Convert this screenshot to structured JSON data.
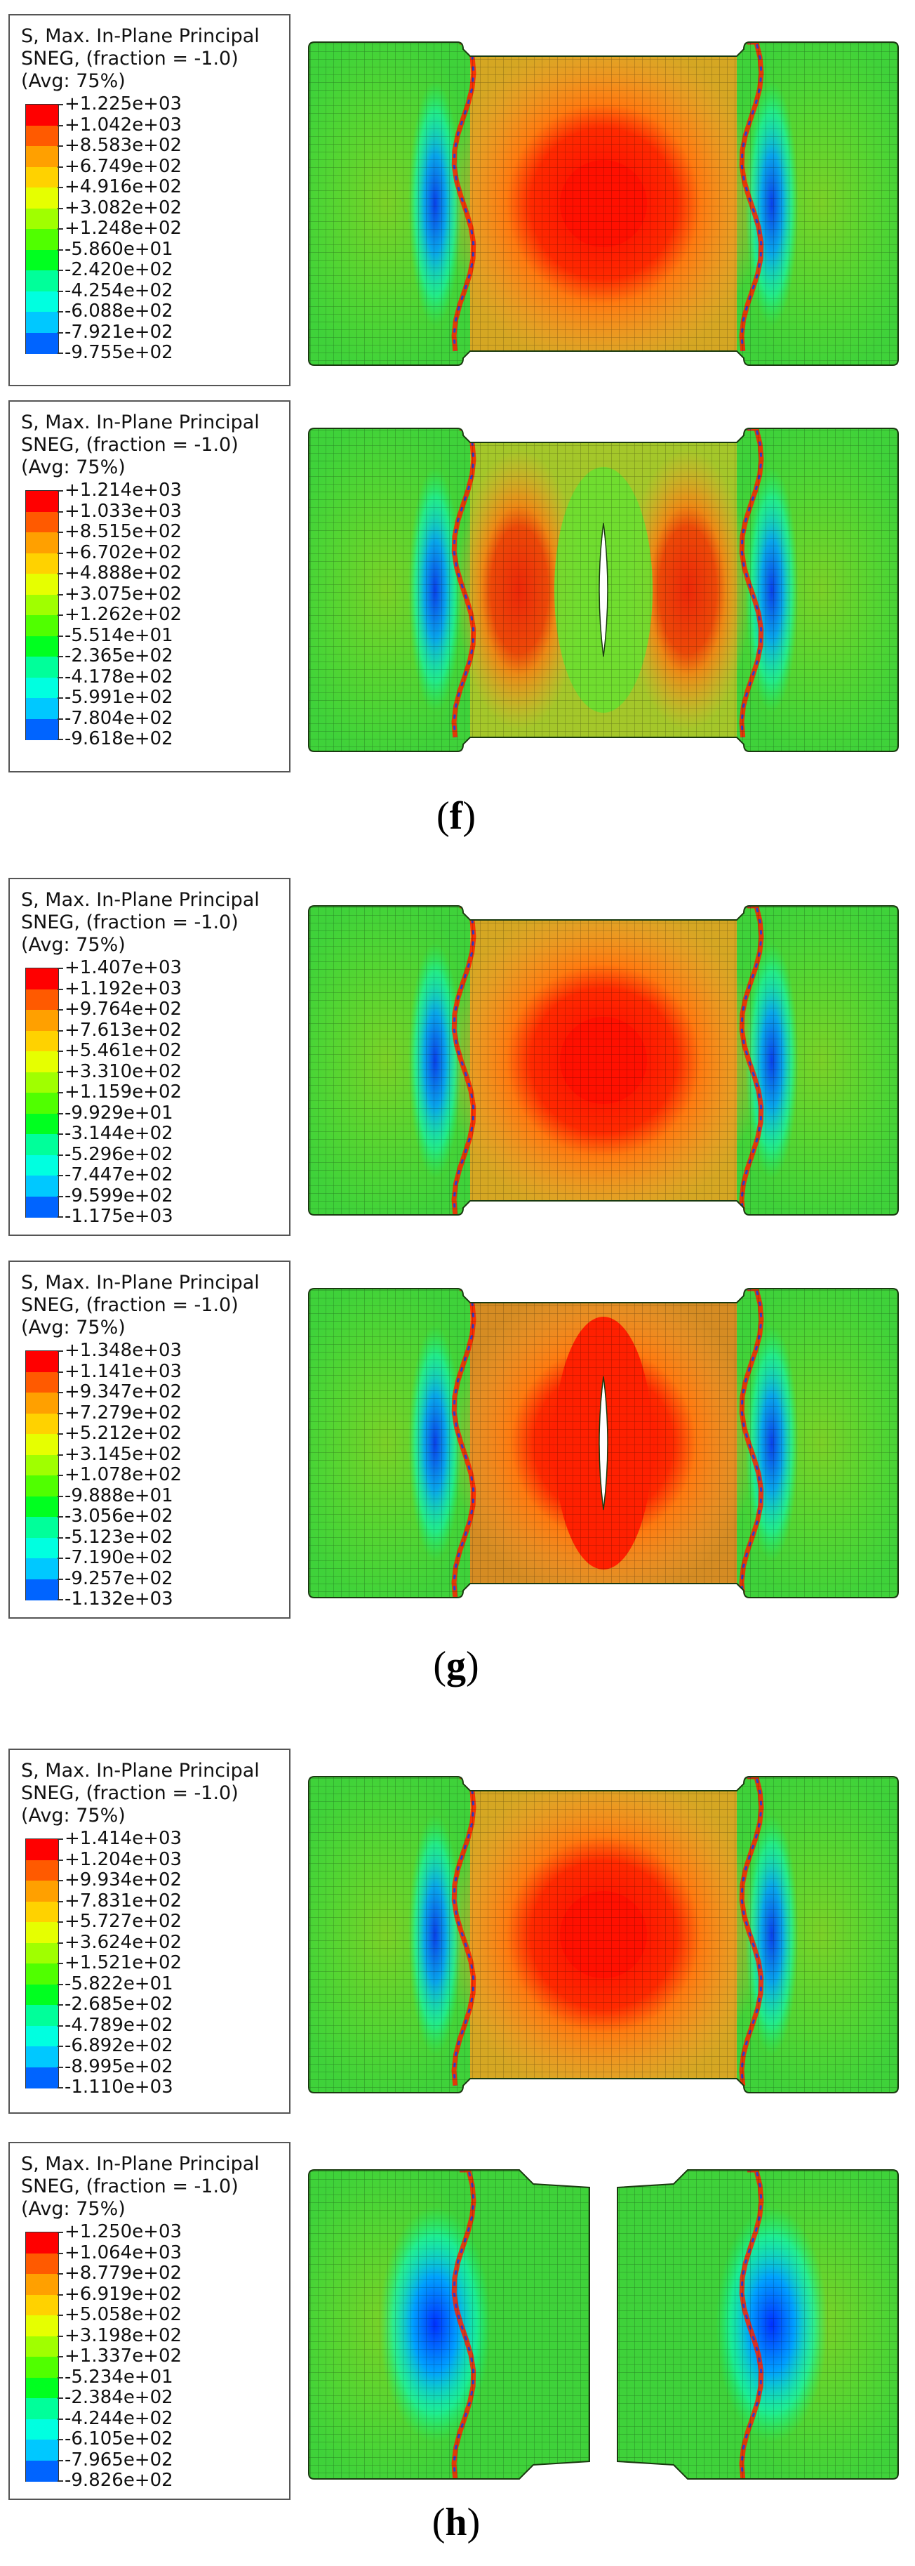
{
  "colors": [
    "#ff0000",
    "#ff5a00",
    "#ffa000",
    "#ffd200",
    "#e6ff00",
    "#a0ff00",
    "#50ff00",
    "#00ff20",
    "#00ff9a",
    "#00ffe0",
    "#00c8ff",
    "#0064ff",
    "#0000ff"
  ],
  "panels": [
    {
      "legend": {
        "title": [
          "S, Max. In-Plane Principal",
          "SNEG, (fraction = -1.0)",
          "(Avg: 75%)"
        ],
        "values": [
          "+1.225e+03",
          "+1.042e+03",
          "+8.583e+02",
          "+6.749e+02",
          "+4.916e+02",
          "+3.082e+02",
          "+1.248e+02",
          "-5.860e+01",
          "-2.420e+02",
          "-4.254e+02",
          "-6.088e+02",
          "-7.921e+02",
          "-9.755e+02"
        ]
      },
      "pattern": "center-hot",
      "split": "none"
    },
    {
      "legend": {
        "title": [
          "S, Max. In-Plane Principal",
          "SNEG, (fraction = -1.0)",
          "(Avg: 75%)"
        ],
        "values": [
          "+1.214e+03",
          "+1.033e+03",
          "+8.515e+02",
          "+6.702e+02",
          "+4.888e+02",
          "+3.075e+02",
          "+1.262e+02",
          "-5.514e+01",
          "-2.365e+02",
          "-4.178e+02",
          "-5.991e+02",
          "-7.804e+02",
          "-9.618e+02"
        ]
      },
      "pattern": "crack-mild",
      "split": "crack"
    },
    {
      "legend": {
        "title": [
          "S, Max. In-Plane Principal",
          "SNEG, (fraction = -1.0)",
          "(Avg: 75%)"
        ],
        "values": [
          "+1.407e+03",
          "+1.192e+03",
          "+9.764e+02",
          "+7.613e+02",
          "+5.461e+02",
          "+3.310e+02",
          "+1.159e+02",
          "-9.929e+01",
          "-3.144e+02",
          "-5.296e+02",
          "-7.447e+02",
          "-9.599e+02",
          "-1.175e+03"
        ]
      },
      "pattern": "center-hot",
      "split": "none"
    },
    {
      "legend": {
        "title": [
          "S, Max. In-Plane Principal",
          "SNEG, (fraction = -1.0)",
          "(Avg: 75%)"
        ],
        "values": [
          "+1.348e+03",
          "+1.141e+03",
          "+9.347e+02",
          "+7.279e+02",
          "+5.212e+02",
          "+3.145e+02",
          "+1.078e+02",
          "-9.888e+01",
          "-3.056e+02",
          "-5.123e+02",
          "-7.190e+02",
          "-9.257e+02",
          "-1.132e+03"
        ]
      },
      "pattern": "crack-hot",
      "split": "crack"
    },
    {
      "legend": {
        "title": [
          "S, Max. In-Plane Principal",
          "SNEG, (fraction = -1.0)",
          "(Avg: 75%)"
        ],
        "values": [
          "+1.414e+03",
          "+1.204e+03",
          "+9.934e+02",
          "+7.831e+02",
          "+5.727e+02",
          "+3.624e+02",
          "+1.521e+02",
          "-5.822e+01",
          "-2.685e+02",
          "-4.789e+02",
          "-6.892e+02",
          "-8.995e+02",
          "-1.110e+03"
        ]
      },
      "pattern": "center-hot",
      "split": "none"
    },
    {
      "legend": {
        "title": [
          "S, Max. In-Plane Principal",
          "SNEG, (fraction = -1.0)",
          "(Avg: 75%)"
        ],
        "values": [
          "+1.250e+03",
          "+1.064e+03",
          "+8.779e+02",
          "+6.919e+02",
          "+5.058e+02",
          "+3.198e+02",
          "+1.337e+02",
          "-5.234e+01",
          "-2.384e+02",
          "-4.244e+02",
          "-6.105e+02",
          "-7.965e+02",
          "-9.826e+02"
        ]
      },
      "pattern": "separated",
      "split": "gap"
    }
  ],
  "labels": [
    "f",
    "g",
    "h"
  ]
}
